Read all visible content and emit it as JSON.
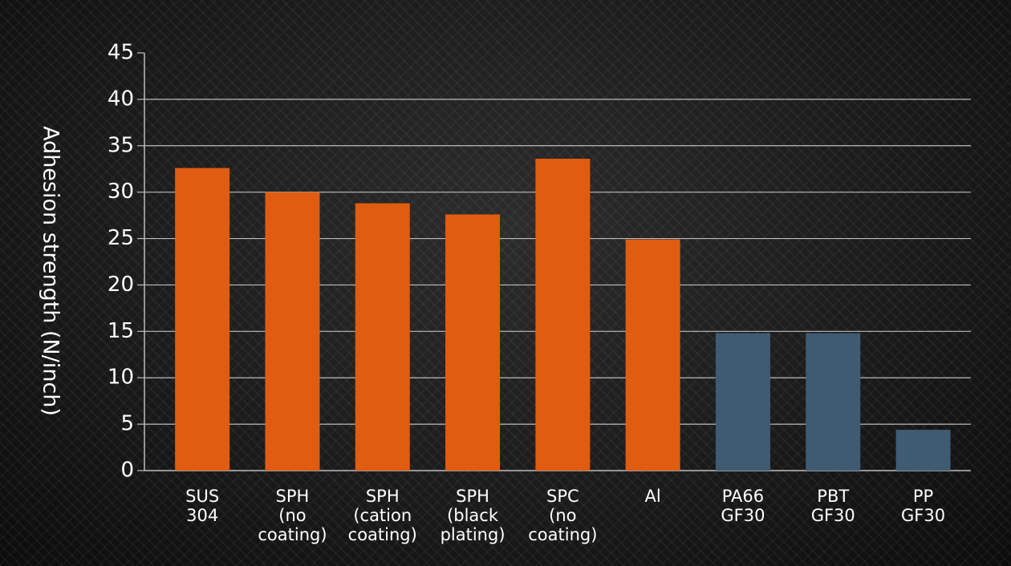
{
  "chart_data": {
    "type": "bar",
    "ylabel": "Adhesion strength (N/inch)",
    "ylim": [
      0,
      45
    ],
    "yticks": [
      0,
      5,
      10,
      15,
      20,
      25,
      30,
      35,
      40,
      45
    ],
    "grid": true,
    "categories": [
      [
        "SUS",
        "304"
      ],
      [
        "SPH",
        "(no",
        "coating)"
      ],
      [
        "SPH",
        "(cation",
        "coating)"
      ],
      [
        "SPH",
        "(black",
        "plating)"
      ],
      [
        "SPC",
        "(no",
        "coating)"
      ],
      [
        "Al"
      ],
      [
        "PA66",
        "GF30"
      ],
      [
        "PBT",
        "GF30"
      ],
      [
        "PP",
        "GF30"
      ]
    ],
    "values": [
      32.6,
      30.0,
      28.8,
      27.6,
      33.6,
      24.9,
      14.8,
      14.8,
      4.4
    ],
    "bar_colors": [
      "#e05c10",
      "#e05c10",
      "#e05c10",
      "#e05c10",
      "#e05c10",
      "#e05c10",
      "#3f5b72",
      "#3f5b72",
      "#3f5b72"
    ],
    "colors": {
      "metal": "#e05c10",
      "resin": "#3f5b72",
      "grid": "#bdbdbd",
      "text": "#ffffff"
    }
  }
}
